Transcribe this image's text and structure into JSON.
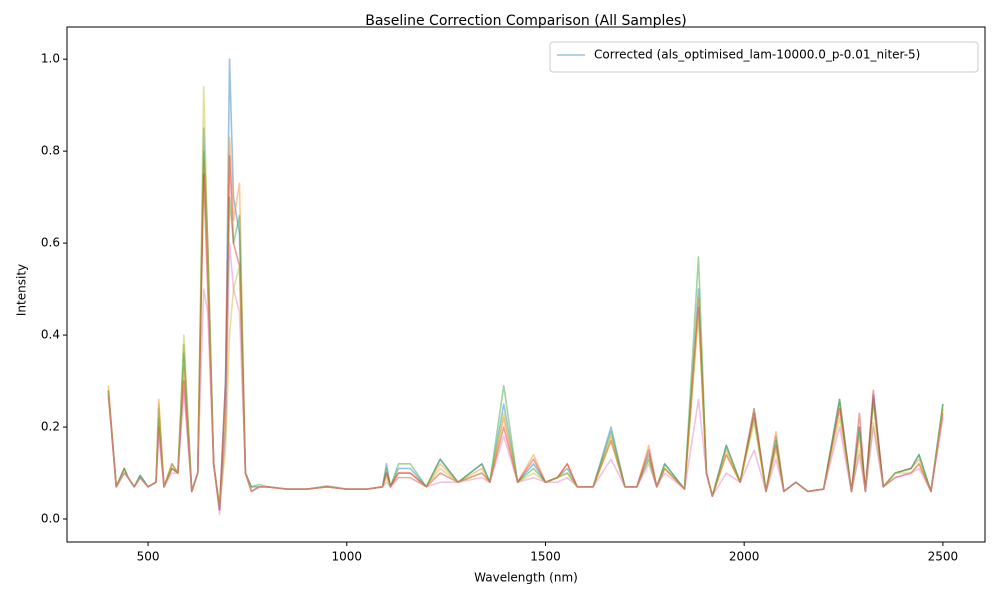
{
  "chart_data": {
    "type": "line",
    "title": "Baseline Correction Comparison (All Samples)",
    "x_label": "Wavelength (nm)",
    "y_label": "Intensity",
    "legend": "upper right",
    "grid": false,
    "xlim": [
      296,
      2606
    ],
    "ylim": [
      -0.05,
      1.07
    ],
    "xticks": [
      500,
      1000,
      1500,
      2000,
      2500
    ],
    "yticks": [
      {
        "value": 0,
        "label": "0.0"
      },
      0.2,
      0.4,
      0.6,
      0.8,
      {
        "value": 1,
        "label": "1.0"
      }
    ],
    "x": [
      400,
      420,
      440,
      450,
      465,
      480,
      500,
      520,
      527,
      540,
      560,
      575,
      590,
      610,
      625,
      640,
      650,
      665,
      680,
      695,
      705,
      715,
      730,
      745,
      760,
      780,
      800,
      850,
      900,
      950,
      1000,
      1050,
      1090,
      1100,
      1110,
      1130,
      1160,
      1200,
      1235,
      1280,
      1340,
      1360,
      1395,
      1430,
      1470,
      1500,
      1530,
      1555,
      1580,
      1620,
      1665,
      1700,
      1730,
      1760,
      1780,
      1800,
      1850,
      1885,
      1905,
      1920,
      1955,
      1990,
      2025,
      2055,
      2080,
      2100,
      2130,
      2160,
      2200,
      2240,
      2270,
      2290,
      2305,
      2325,
      2350,
      2380,
      2420,
      2440,
      2470,
      2500
    ],
    "series": [
      {
        "name": "Corrected (als_optimised_lam-10000.0_p-0.01_niter-5)",
        "color": "#1f77b4",
        "values": [
          0.28,
          0.07,
          0.11,
          0.09,
          0.07,
          0.095,
          0.07,
          0.08,
          0.24,
          0.07,
          0.12,
          0.1,
          0.36,
          0.06,
          0.1,
          0.85,
          0.6,
          0.12,
          0.02,
          0.3,
          1.0,
          0.7,
          0.62,
          0.1,
          0.07,
          0.07,
          0.07,
          0.065,
          0.065,
          0.07,
          0.065,
          0.065,
          0.07,
          0.12,
          0.07,
          0.11,
          0.11,
          0.07,
          0.13,
          0.08,
          0.12,
          0.08,
          0.25,
          0.08,
          0.12,
          0.08,
          0.09,
          0.11,
          0.07,
          0.07,
          0.2,
          0.07,
          0.07,
          0.14,
          0.07,
          0.12,
          0.065,
          0.5,
          0.1,
          0.05,
          0.16,
          0.08,
          0.24,
          0.06,
          0.18,
          0.06,
          0.08,
          0.06,
          0.065,
          0.26,
          0.06,
          0.2,
          0.06,
          0.27,
          0.07,
          0.1,
          0.11,
          0.14,
          0.06,
          0.25
        ]
      },
      {
        "color": "#ff7f0e",
        "values": [
          0.29,
          0.07,
          0.11,
          0.09,
          0.07,
          0.09,
          0.07,
          0.08,
          0.26,
          0.07,
          0.12,
          0.1,
          0.33,
          0.06,
          0.1,
          0.78,
          0.55,
          0.12,
          0.03,
          0.25,
          0.83,
          0.65,
          0.73,
          0.1,
          0.06,
          0.07,
          0.07,
          0.065,
          0.065,
          0.07,
          0.065,
          0.065,
          0.07,
          0.1,
          0.07,
          0.1,
          0.1,
          0.07,
          0.12,
          0.08,
          0.11,
          0.08,
          0.22,
          0.08,
          0.14,
          0.08,
          0.09,
          0.12,
          0.07,
          0.07,
          0.18,
          0.07,
          0.07,
          0.16,
          0.07,
          0.11,
          0.065,
          0.48,
          0.1,
          0.05,
          0.15,
          0.08,
          0.24,
          0.06,
          0.19,
          0.06,
          0.08,
          0.06,
          0.065,
          0.25,
          0.06,
          0.18,
          0.06,
          0.25,
          0.07,
          0.1,
          0.11,
          0.13,
          0.06,
          0.24
        ]
      },
      {
        "color": "#2ca02c",
        "values": [
          0.28,
          0.07,
          0.11,
          0.09,
          0.07,
          0.095,
          0.07,
          0.08,
          0.22,
          0.07,
          0.11,
          0.1,
          0.38,
          0.06,
          0.1,
          0.8,
          0.6,
          0.12,
          0.02,
          0.2,
          0.7,
          0.6,
          0.66,
          0.1,
          0.07,
          0.075,
          0.07,
          0.065,
          0.065,
          0.072,
          0.065,
          0.065,
          0.07,
          0.11,
          0.07,
          0.12,
          0.12,
          0.07,
          0.13,
          0.08,
          0.12,
          0.08,
          0.29,
          0.08,
          0.11,
          0.08,
          0.09,
          0.1,
          0.07,
          0.07,
          0.19,
          0.07,
          0.07,
          0.13,
          0.07,
          0.12,
          0.065,
          0.57,
          0.1,
          0.05,
          0.16,
          0.08,
          0.22,
          0.06,
          0.17,
          0.06,
          0.08,
          0.06,
          0.065,
          0.26,
          0.06,
          0.2,
          0.06,
          0.26,
          0.07,
          0.1,
          0.11,
          0.14,
          0.06,
          0.25
        ]
      },
      {
        "color": "#d62728",
        "values": [
          0.27,
          0.07,
          0.1,
          0.09,
          0.07,
          0.09,
          0.07,
          0.08,
          0.2,
          0.07,
          0.11,
          0.1,
          0.3,
          0.06,
          0.1,
          0.75,
          0.5,
          0.12,
          0.02,
          0.3,
          0.79,
          0.6,
          0.55,
          0.1,
          0.06,
          0.07,
          0.07,
          0.065,
          0.065,
          0.07,
          0.065,
          0.065,
          0.07,
          0.1,
          0.07,
          0.1,
          0.1,
          0.07,
          0.1,
          0.08,
          0.1,
          0.08,
          0.2,
          0.08,
          0.13,
          0.08,
          0.09,
          0.12,
          0.07,
          0.07,
          0.17,
          0.07,
          0.07,
          0.15,
          0.07,
          0.11,
          0.065,
          0.46,
          0.1,
          0.05,
          0.14,
          0.08,
          0.23,
          0.06,
          0.16,
          0.06,
          0.08,
          0.06,
          0.065,
          0.24,
          0.06,
          0.23,
          0.06,
          0.28,
          0.07,
          0.09,
          0.1,
          0.12,
          0.06,
          0.23
        ]
      },
      {
        "color": "#bcbd22",
        "values": [
          0.28,
          0.07,
          0.1,
          0.09,
          0.07,
          0.09,
          0.07,
          0.08,
          0.25,
          0.07,
          0.12,
          0.1,
          0.4,
          0.06,
          0.1,
          0.94,
          0.6,
          0.12,
          0.03,
          0.15,
          0.4,
          0.5,
          0.55,
          0.1,
          0.06,
          0.07,
          0.07,
          0.065,
          0.065,
          0.07,
          0.065,
          0.065,
          0.07,
          0.09,
          0.07,
          0.09,
          0.09,
          0.07,
          0.11,
          0.08,
          0.1,
          0.08,
          0.23,
          0.08,
          0.1,
          0.08,
          0.09,
          0.1,
          0.07,
          0.07,
          0.17,
          0.07,
          0.07,
          0.13,
          0.07,
          0.11,
          0.065,
          0.44,
          0.1,
          0.05,
          0.14,
          0.08,
          0.21,
          0.06,
          0.15,
          0.06,
          0.08,
          0.06,
          0.065,
          0.22,
          0.06,
          0.15,
          0.06,
          0.21,
          0.07,
          0.1,
          0.1,
          0.12,
          0.06,
          0.24
        ]
      },
      {
        "color": "#e377c2",
        "values": [
          0.27,
          0.07,
          0.1,
          0.09,
          0.07,
          0.09,
          0.07,
          0.08,
          0.18,
          0.07,
          0.1,
          0.1,
          0.28,
          0.06,
          0.1,
          0.5,
          0.45,
          0.12,
          0.01,
          0.2,
          0.6,
          0.5,
          0.45,
          0.1,
          0.06,
          0.07,
          0.07,
          0.065,
          0.065,
          0.07,
          0.065,
          0.065,
          0.07,
          0.08,
          0.07,
          0.09,
          0.09,
          0.07,
          0.08,
          0.08,
          0.09,
          0.08,
          0.18,
          0.08,
          0.09,
          0.08,
          0.08,
          0.09,
          0.07,
          0.07,
          0.13,
          0.07,
          0.07,
          0.12,
          0.07,
          0.1,
          0.065,
          0.26,
          0.1,
          0.05,
          0.1,
          0.08,
          0.15,
          0.06,
          0.13,
          0.06,
          0.08,
          0.06,
          0.065,
          0.2,
          0.06,
          0.14,
          0.06,
          0.2,
          0.07,
          0.09,
          0.1,
          0.11,
          0.06,
          0.22
        ]
      }
    ]
  }
}
